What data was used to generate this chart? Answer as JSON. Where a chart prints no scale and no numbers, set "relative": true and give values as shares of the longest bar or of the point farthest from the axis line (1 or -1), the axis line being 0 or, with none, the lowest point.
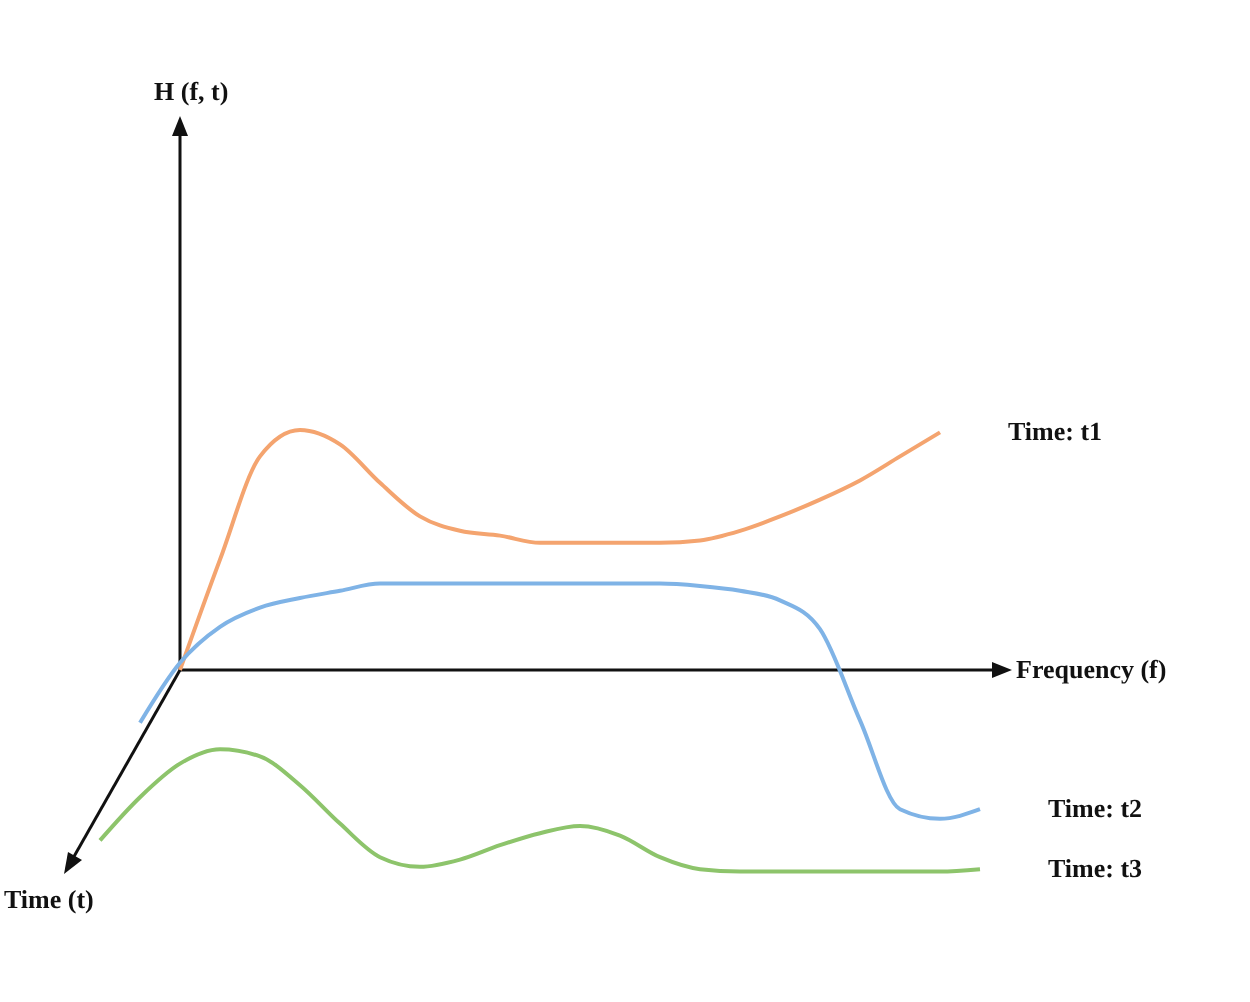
{
  "chart_data": {
    "type": "line",
    "relative": true,
    "xlabel": "Frequency (f)",
    "annotations": [
      "H (f, t)",
      "Time (t)"
    ],
    "categories": [
      null,
      null,
      null,
      null,
      null,
      null,
      null,
      null,
      null,
      null,
      null,
      null,
      null,
      null,
      null,
      null,
      null,
      null,
      null,
      null,
      null,
      null,
      null,
      null
    ],
    "series": [
      {
        "name": "Time: t1",
        "color": "#f4a46f",
        "values": [
          null,
          null,
          null,
          0.0,
          0.46,
          0.89,
          1.0,
          0.94,
          0.78,
          0.64,
          0.58,
          0.56,
          0.53,
          0.53,
          0.53,
          0.53,
          0.54,
          0.58,
          0.64,
          0.71,
          0.79,
          0.89,
          0.99,
          null
        ]
      },
      {
        "name": "Time: t2",
        "color": "#7fb3e6",
        "values": [
          null,
          null,
          -0.22,
          0.03,
          0.18,
          0.26,
          0.3,
          0.33,
          0.36,
          0.36,
          0.36,
          0.36,
          0.36,
          0.36,
          0.36,
          0.36,
          0.35,
          0.33,
          0.29,
          0.17,
          -0.21,
          -0.58,
          -0.62,
          -0.58
        ]
      },
      {
        "name": "Time: t3",
        "color": "#8dc46b",
        "values": [
          null,
          -0.71,
          -0.53,
          -0.39,
          -0.33,
          -0.36,
          -0.48,
          -0.64,
          -0.78,
          -0.82,
          -0.79,
          -0.73,
          -0.68,
          -0.65,
          -0.69,
          -0.78,
          -0.83,
          -0.84,
          -0.84,
          -0.84,
          -0.84,
          -0.84,
          -0.84,
          -0.83
        ]
      }
    ]
  }
}
